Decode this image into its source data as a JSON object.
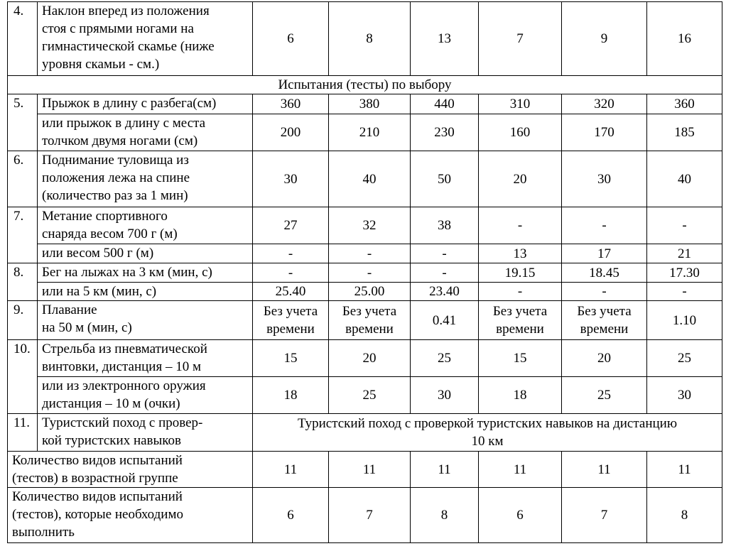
{
  "table": {
    "rows": [
      {
        "number": "4.",
        "label": "Наклон вперед из положения\nстоя с прямыми ногами на\nгимнастической скамье (ниже\nуровня скамьи - см.)",
        "values": [
          "6",
          "8",
          "13",
          "7",
          "9",
          "16"
        ]
      },
      {
        "number": "5.",
        "label": "Прыжок в длину с разбега(см)",
        "values": [
          "360",
          "380",
          "440",
          "310",
          "320",
          "360"
        ]
      },
      {
        "label": "или прыжок в длину с места\nтолчком двумя ногами (см)",
        "values": [
          "200",
          "210",
          "230",
          "160",
          "170",
          "185"
        ]
      },
      {
        "number": "6.",
        "label": "Поднимание туловища из\nположения лежа на спине\n(количество раз за 1 мин)",
        "values": [
          "30",
          "40",
          "50",
          "20",
          "30",
          "40"
        ]
      },
      {
        "number": "7.",
        "label": "Метание спортивного\nснаряда весом 700 г (м)",
        "values": [
          "27",
          "32",
          "38",
          "-",
          "-",
          "-"
        ]
      },
      {
        "label": "или весом 500 г (м)",
        "values": [
          "-",
          "-",
          "-",
          "13",
          "17",
          "21"
        ]
      },
      {
        "number": "8.",
        "label": "Бег на лыжах на 3 км (мин, с)",
        "values": [
          "-",
          "-",
          "-",
          "19.15",
          "18.45",
          "17.30"
        ]
      },
      {
        "label": "или на 5 км (мин, с)",
        "values": [
          "25.40",
          "25.00",
          "23.40",
          "-",
          "-",
          "-"
        ]
      },
      {
        "number": "9.",
        "label": "Плавание\nна 50 м (мин, с)",
        "values": [
          "Без учета\nвремени",
          "Без учета\nвремени",
          "0.41",
          "Без учета\nвремени",
          "Без учета\nвремени",
          "1.10"
        ]
      },
      {
        "number": "10.",
        "label": "Стрельба из пневматической\nвинтовки, дистанция – 10 м",
        "values": [
          "15",
          "20",
          "25",
          "15",
          "20",
          "25"
        ]
      },
      {
        "label": "или из электронного оружия\nдистанция – 10 м (очки)",
        "values": [
          "18",
          "25",
          "30",
          "18",
          "25",
          "30"
        ]
      },
      {
        "number": "11.",
        "label": "Туристский поход с провер-\nкой туристских навыков",
        "value": "Туристский поход с проверкой туристских навыков на дистанцию\n10 км"
      }
    ],
    "section": "Испытания (тесты) по выбору",
    "summary_rows": [
      {
        "label": "Количество видов испытаний\n(тестов) в возрастной группе",
        "values": [
          "11",
          "11",
          "11",
          "11",
          "11",
          "11"
        ]
      },
      {
        "label": "Количество видов испытаний\n(тестов), которые необходимо\nвыполнить",
        "values": [
          "6",
          "7",
          "8",
          "6",
          "7",
          "8"
        ]
      }
    ]
  }
}
